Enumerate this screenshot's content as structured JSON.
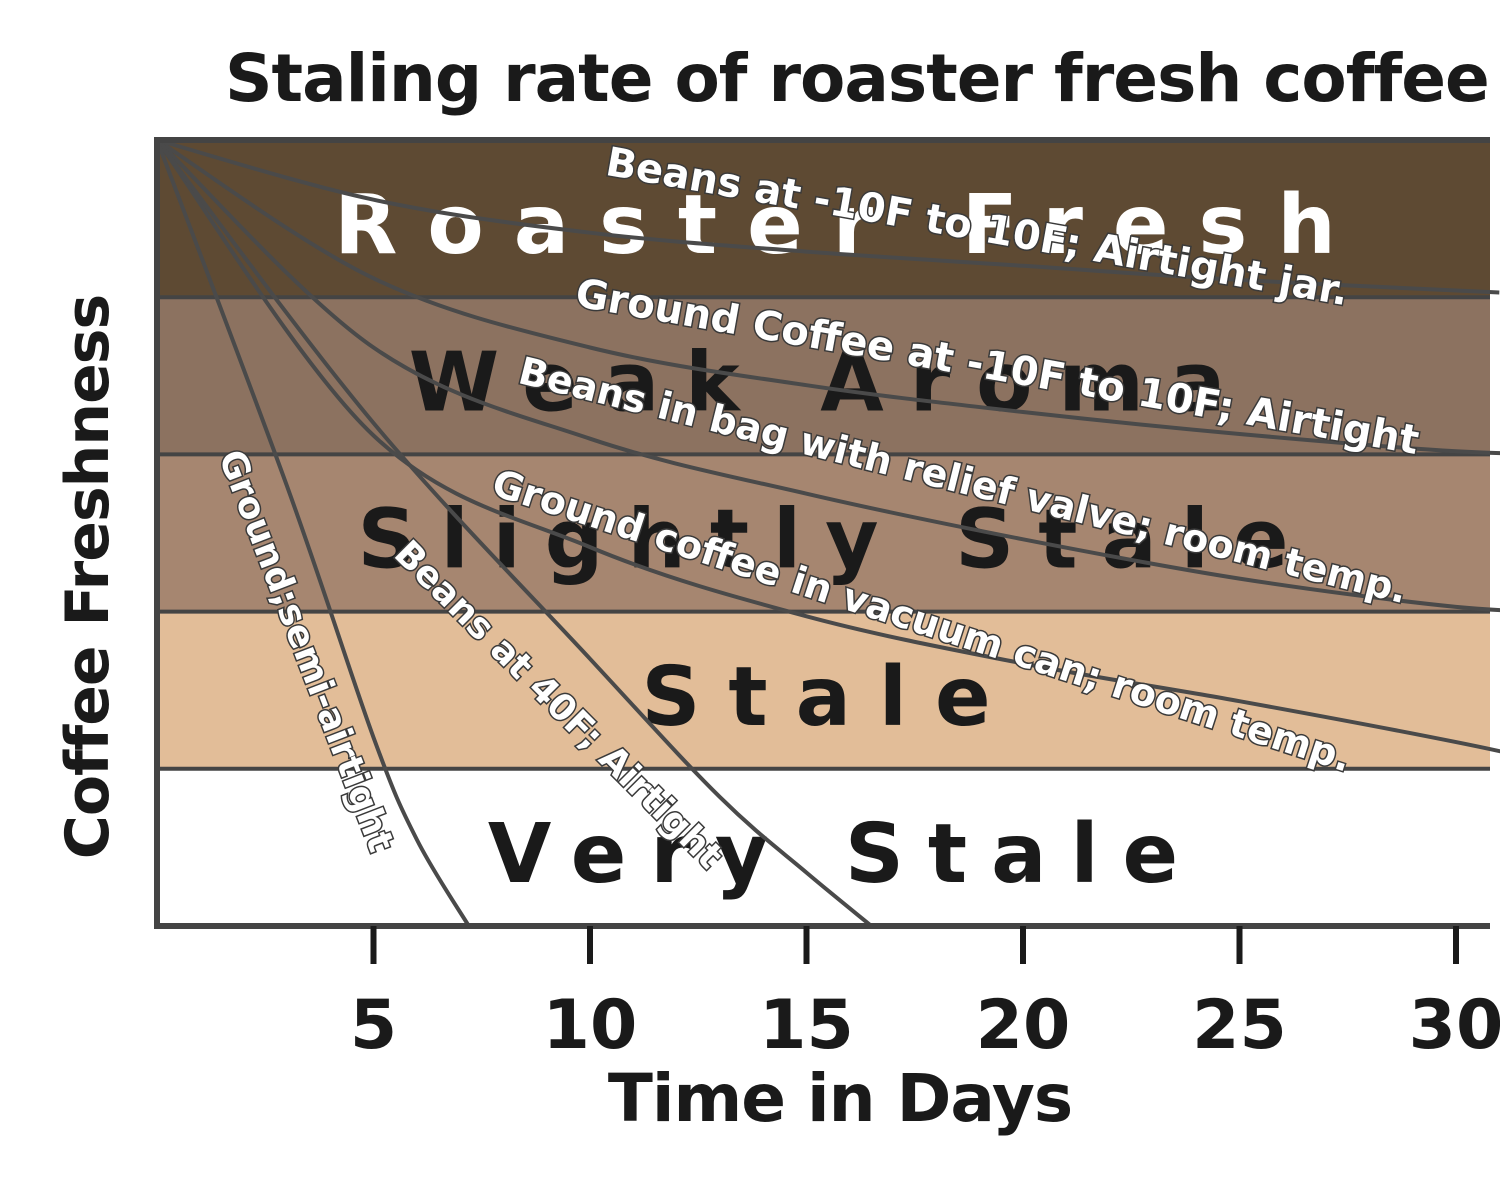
{
  "chart_data": {
    "type": "line",
    "title": "Staling rate of roaster fresh coffee",
    "xlabel": "Time in Days",
    "ylabel": "Coffee Freshness",
    "xlim": [
      0,
      33
    ],
    "x_ticks": [
      5,
      10,
      15,
      20,
      25,
      30
    ],
    "grid": false,
    "zones": [
      {
        "label": "Roaster Fresh",
        "color": "#5e4a33",
        "text_color": "#ffffff"
      },
      {
        "label": "Weak Aroma",
        "color": "#8c7260",
        "text_color": "#1a1a1a"
      },
      {
        "label": "Slightly Stale",
        "color": "#a68670",
        "text_color": "#1a1a1a"
      },
      {
        "label": "Stale",
        "color": "#e2bd98",
        "text_color": "#1a1a1a"
      },
      {
        "label": "Very Stale",
        "color": "#ffffff",
        "text_color": "#1a1a1a"
      }
    ],
    "series": [
      {
        "name": "Beans at -10F to 10F; Airtight jar.",
        "x": [
          0,
          5,
          10,
          15,
          20,
          25,
          31
        ],
        "y": [
          5.0,
          4.62,
          4.41,
          4.29,
          4.2,
          4.11,
          4.03
        ]
      },
      {
        "name": "Ground Coffee at -10F to 10F; Airtight",
        "x": [
          0,
          5,
          10,
          15,
          20,
          25,
          30,
          33
        ],
        "y": [
          5.0,
          4.12,
          3.68,
          3.44,
          3.27,
          3.13,
          3.02,
          3.0
        ]
      },
      {
        "name": "Beans in bag with relief valve; room temp.",
        "x": [
          0,
          5,
          10,
          15,
          20,
          25,
          30,
          33
        ],
        "y": [
          5.0,
          3.68,
          3.1,
          2.75,
          2.46,
          2.21,
          2.03,
          1.99
        ]
      },
      {
        "name": "Ground coffee in vacuum can; room temp.",
        "x": [
          0,
          5,
          10,
          15,
          20,
          25,
          30,
          33
        ],
        "y": [
          5.0,
          3.12,
          2.41,
          1.97,
          1.67,
          1.43,
          1.17,
          0.99
        ]
      },
      {
        "name": "Beans at 40F; Airtight",
        "x": [
          0,
          5,
          10,
          13,
          15,
          16.5
        ],
        "y": [
          5.0,
          3.2,
          1.7,
          0.82,
          0.34,
          0.0
        ]
      },
      {
        "name": "Ground;semi-airtight",
        "x": [
          0,
          3,
          5,
          6,
          7.2
        ],
        "y": [
          5.0,
          2.8,
          1.2,
          0.55,
          0.0
        ]
      }
    ]
  }
}
